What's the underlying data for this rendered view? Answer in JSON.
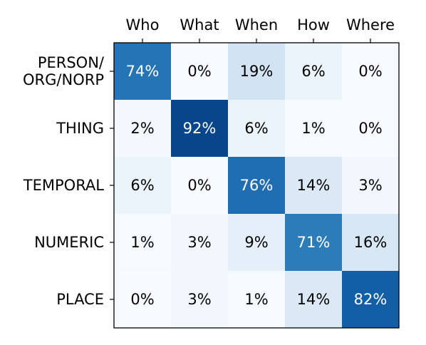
{
  "chart_data": {
    "type": "heatmap",
    "title": "",
    "xlabel": "",
    "ylabel": "",
    "x_position": "top",
    "colormap": "Blues",
    "columns": [
      "Who",
      "What",
      "When",
      "How",
      "Where"
    ],
    "rows": [
      {
        "lines": [
          "PERSON/",
          "ORG/NORP"
        ]
      },
      {
        "lines": [
          "THING"
        ]
      },
      {
        "lines": [
          "TEMPORAL"
        ]
      },
      {
        "lines": [
          "NUMERIC"
        ]
      },
      {
        "lines": [
          "PLACE"
        ]
      }
    ],
    "values": [
      [
        74,
        0,
        19,
        6,
        0
      ],
      [
        2,
        92,
        6,
        1,
        0
      ],
      [
        6,
        0,
        76,
        14,
        3
      ],
      [
        1,
        3,
        9,
        71,
        16
      ],
      [
        0,
        3,
        1,
        14,
        82
      ]
    ],
    "value_suffix": "%",
    "range": [
      0,
      100
    ]
  }
}
